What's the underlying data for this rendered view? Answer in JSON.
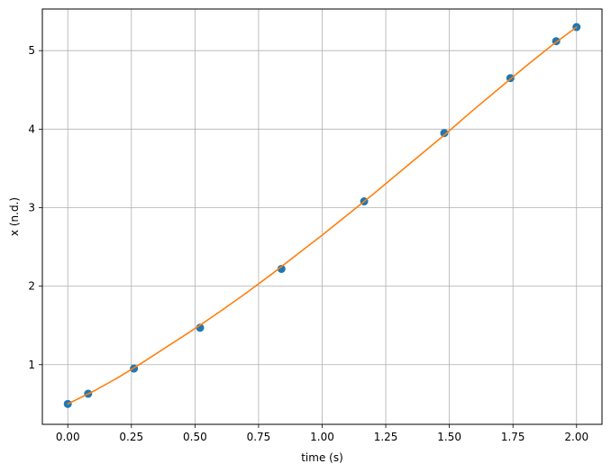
{
  "chart_data": {
    "type": "scatter",
    "title": "",
    "xlabel": "time (s)",
    "ylabel": "x (n.d.)",
    "xlim": [
      -0.1,
      2.1
    ],
    "ylim": [
      0.24,
      5.53
    ],
    "xticks": [
      0.0,
      0.25,
      0.5,
      0.75,
      1.0,
      1.25,
      1.5,
      1.75,
      2.0
    ],
    "xtick_labels": [
      "0.00",
      "0.25",
      "0.50",
      "0.75",
      "1.00",
      "1.25",
      "1.50",
      "1.75",
      "2.00"
    ],
    "yticks": [
      1,
      2,
      3,
      4,
      5
    ],
    "ytick_labels": [
      "1",
      "2",
      "3",
      "4",
      "5"
    ],
    "grid": true,
    "legend": "none",
    "series": [
      {
        "kind": "scatter",
        "color": "#1f77b4",
        "x": [
          0.0,
          0.08,
          0.26,
          0.52,
          0.84,
          1.165,
          1.48,
          1.74,
          1.92,
          2.0
        ],
        "y": [
          0.5,
          0.63,
          0.95,
          1.47,
          2.22,
          3.08,
          3.95,
          4.65,
          5.12,
          5.3
        ]
      },
      {
        "kind": "line",
        "color": "#ff7f0e",
        "x": [
          0.0,
          0.1,
          0.2,
          0.3,
          0.4,
          0.5,
          0.6,
          0.7,
          0.8,
          0.9,
          1.0,
          1.1,
          1.2,
          1.3,
          1.4,
          1.5,
          1.6,
          1.7,
          1.8,
          1.9,
          2.0
        ],
        "y": [
          0.5,
          0.66,
          0.84,
          1.04,
          1.25,
          1.46,
          1.68,
          1.91,
          2.15,
          2.4,
          2.65,
          2.91,
          3.17,
          3.44,
          3.71,
          3.98,
          4.26,
          4.53,
          4.8,
          5.06,
          5.3
        ]
      }
    ]
  }
}
